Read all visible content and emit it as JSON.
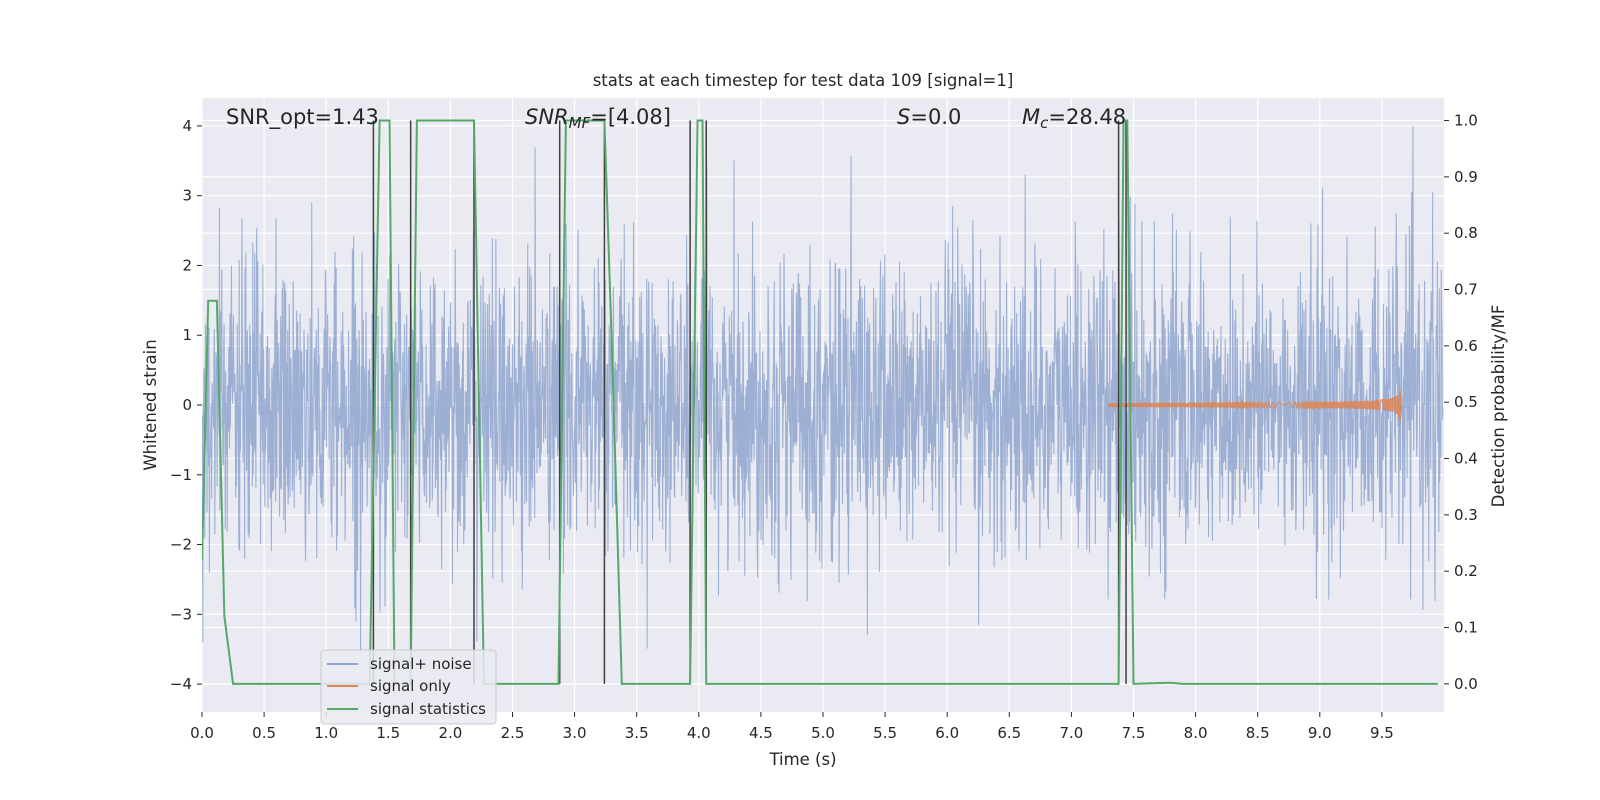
{
  "chart_data": {
    "type": "line",
    "title": "stats at each timestep for test data 109 [signal=1]",
    "xlabel": "Time (s)",
    "ylabel": "Whitened strain",
    "ylabel_right": "Detection probability/MF",
    "xlim": [
      0.0,
      10.0
    ],
    "ylim": [
      -4.4,
      4.4
    ],
    "ylim_right": [
      -0.05,
      1.04
    ],
    "x_ticks": [
      0.0,
      0.5,
      1.0,
      1.5,
      2.0,
      2.5,
      3.0,
      3.5,
      4.0,
      4.5,
      5.0,
      5.5,
      6.0,
      6.5,
      7.0,
      7.5,
      8.0,
      8.5,
      9.0,
      9.5
    ],
    "x_tick_labels": [
      "0.0",
      "0.5",
      "1.0",
      "1.5",
      "2.0",
      "2.5",
      "3.0",
      "3.5",
      "4.0",
      "4.5",
      "5.0",
      "5.5",
      "6.0",
      "6.5",
      "7.0",
      "7.5",
      "8.0",
      "8.5",
      "9.0",
      "9.5"
    ],
    "y_ticks": [
      -4,
      -3,
      -2,
      -1,
      0,
      1,
      2,
      3,
      4
    ],
    "y_tick_labels": [
      "−4",
      "−3",
      "−2",
      "−1",
      "0",
      "1",
      "2",
      "3",
      "4"
    ],
    "y_right_ticks": [
      0.0,
      0.1,
      0.2,
      0.3,
      0.4,
      0.5,
      0.6,
      0.7,
      0.8,
      0.9,
      1.0
    ],
    "y_right_tick_labels": [
      "0.0",
      "0.1",
      "0.2",
      "0.3",
      "0.4",
      "0.5",
      "0.6",
      "0.7",
      "0.8",
      "0.9",
      "1.0"
    ],
    "grid": true,
    "legend_placement": "lower-left",
    "annotations": {
      "snr_opt": "SNR_opt=1.43",
      "snr_mf_main": "SNR",
      "snr_mf_sub": "MF",
      "snr_mf_value": "=[4.08]",
      "s_main": "S",
      "s_value": "=0.0",
      "mc_main": "M",
      "mc_sub": "c",
      "mc_value": "=28.48"
    },
    "series": [
      {
        "name": "signal+ noise",
        "axis": "left",
        "color": "#8fa6cf",
        "kind": "whitened-noise",
        "time_range": [
          0.0,
          9.99
        ],
        "amplitude_envelope": 4.0
      },
      {
        "name": "signal only",
        "axis": "left",
        "color": "#dd8452",
        "kind": "chirp",
        "time_range": [
          7.3,
          9.66
        ],
        "peak_time": 9.65,
        "peak_amplitude": 0.38
      },
      {
        "name": "signal statistics",
        "axis": "right",
        "color": "#55a868",
        "x": [
          0.0,
          0.05,
          0.12,
          0.18,
          0.25,
          1.35,
          1.43,
          1.45,
          1.51,
          1.55,
          1.6,
          1.68,
          1.73,
          2.19,
          2.27,
          2.87,
          2.93,
          2.95,
          3.24,
          3.3,
          3.38,
          3.93,
          3.99,
          4.03,
          4.06,
          4.12,
          7.38,
          7.42,
          7.45,
          7.5,
          7.8,
          7.9,
          9.95
        ],
        "y": [
          0.22,
          0.68,
          0.68,
          0.12,
          0.0,
          0.0,
          1.0,
          1.0,
          1.0,
          0.0,
          0.0,
          0.0,
          1.0,
          1.0,
          0.0,
          0.0,
          1.0,
          1.0,
          1.0,
          0.6,
          0.0,
          0.0,
          1.0,
          1.0,
          0.0,
          0.0,
          0.0,
          1.0,
          1.0,
          0.0,
          0.002,
          0.0,
          0.0
        ]
      },
      {
        "name": "",
        "axis": "right",
        "kind": "vertical-markers",
        "color": "#404040",
        "x": [
          1.38,
          1.68,
          2.19,
          2.88,
          3.24,
          3.93,
          4.06,
          7.38,
          7.44
        ]
      }
    ]
  }
}
